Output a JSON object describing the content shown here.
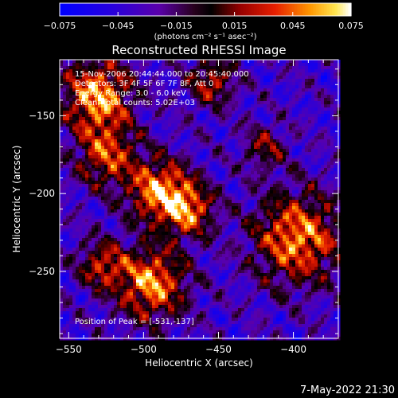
{
  "chart_data": {
    "type": "heatmap",
    "title": "Reconstructed RHESSI Image",
    "xlabel": "Heliocentric X (arcsec)",
    "ylabel": "Heliocentric Y (arcsec)",
    "xlim": [
      -556,
      -370
    ],
    "ylim": [
      -293,
      -114
    ],
    "x_ticks": [
      -550,
      -500,
      -450,
      -400
    ],
    "y_ticks": [
      -150,
      -200,
      -250
    ],
    "x_tick_labels": [
      "−550",
      "−500",
      "−450",
      "−400"
    ],
    "y_tick_labels": [
      "−150",
      "−200",
      "−250"
    ],
    "colorbar": {
      "min": -0.075,
      "max": 0.075,
      "ticks": [
        -0.075,
        -0.045,
        -0.015,
        0.015,
        0.045,
        0.075
      ],
      "tick_labels": [
        "−0.075",
        "−0.045",
        "−0.015",
        "0.015",
        "0.045",
        "0.075"
      ],
      "unit_label": "(photons cm⁻² s⁻¹ asec⁻²)"
    },
    "annotations": [
      "15-Nov-2006 20:44:44.000 to 20:45:40.000",
      "Detectors: 3F 4F 5F 6F 7F 8F, Att 0",
      "Energy Range: 3.0 - 6.0 keV",
      "Clean. Total counts: 5.02E+03"
    ],
    "peak_label": "Position of Peak = [-531,-137]",
    "peak": [
      -531,
      -137
    ],
    "sources": [
      {
        "x": -531,
        "y": -137,
        "sigma": 16,
        "amp": 0.075
      },
      {
        "x": -525,
        "y": -175,
        "sigma": 14,
        "amp": 0.045
      },
      {
        "x": -490,
        "y": -198,
        "sigma": 14,
        "amp": 0.072
      },
      {
        "x": -470,
        "y": -210,
        "sigma": 12,
        "amp": 0.05
      },
      {
        "x": -495,
        "y": -257,
        "sigma": 16,
        "amp": 0.07
      },
      {
        "x": -528,
        "y": -245,
        "sigma": 11,
        "amp": 0.035
      },
      {
        "x": -398,
        "y": -228,
        "sigma": 20,
        "amp": 0.068
      },
      {
        "x": -455,
        "y": -128,
        "sigma": 11,
        "amp": 0.035
      },
      {
        "x": -420,
        "y": -170,
        "sigma": 10,
        "amp": 0.02
      }
    ],
    "background_level": -0.035,
    "grid": false
  },
  "footer": {
    "timestamp": "7-May-2022 21:30"
  }
}
